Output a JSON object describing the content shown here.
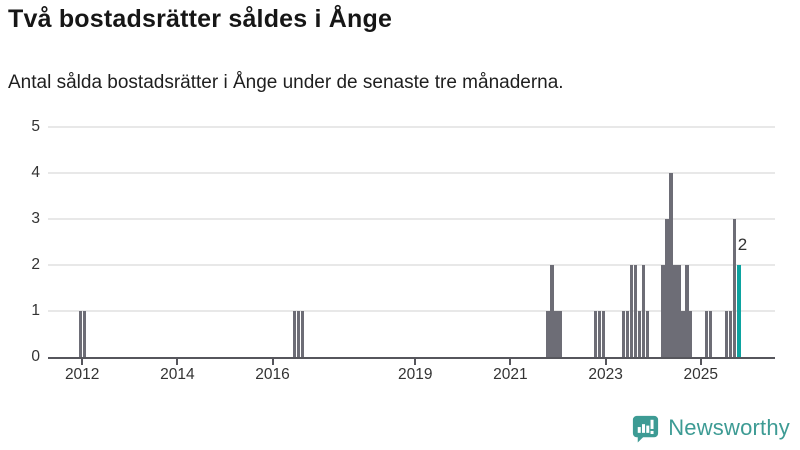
{
  "title": "Två bostadsrätter såldes i Ånge",
  "subtitle": "Antal sålda bostadsrätter i Ånge under de senaste tre månaderna.",
  "branding": {
    "logo_text": "Newsworthy",
    "logo_color": "#3d9b94"
  },
  "colors": {
    "bar": "#6d6d76",
    "highlight": "#0ca3a0",
    "gridline": "#e8e8e8",
    "axis_line": "#56565c",
    "axis_text": "#333333"
  },
  "chart_data": {
    "type": "bar",
    "title": "Två bostadsrätter såldes i Ånge",
    "subtitle": "Antal sålda bostadsrätter i Ånge under de senaste tre månaderna.",
    "xlabel": "",
    "ylabel": "",
    "ylim": [
      0,
      5
    ],
    "grid": true,
    "y_ticks": [
      "0",
      "1",
      "2",
      "3",
      "4",
      "5"
    ],
    "x_ticks": [
      "2012",
      "2014",
      "2016",
      "2019",
      "2021",
      "2023",
      "2025"
    ],
    "unit": "antal sålda bostadsrätter per månad",
    "series": [
      {
        "name": "Antal sålda bostadsrätter",
        "points": [
          {
            "month": "2011-12",
            "value": 1
          },
          {
            "month": "2012-01",
            "value": 1
          },
          {
            "month": "2016-06",
            "value": 1
          },
          {
            "month": "2016-07",
            "value": 1
          },
          {
            "month": "2016-08",
            "value": 1
          },
          {
            "month": "2021-10",
            "value": 1
          },
          {
            "month": "2021-11",
            "value": 2
          },
          {
            "month": "2021-12",
            "value": 1
          },
          {
            "month": "2022-01",
            "value": 1
          },
          {
            "month": "2022-10",
            "value": 1
          },
          {
            "month": "2022-11",
            "value": 1
          },
          {
            "month": "2022-12",
            "value": 1
          },
          {
            "month": "2023-05",
            "value": 1
          },
          {
            "month": "2023-06",
            "value": 1
          },
          {
            "month": "2023-07",
            "value": 2
          },
          {
            "month": "2023-08",
            "value": 2
          },
          {
            "month": "2023-09",
            "value": 1
          },
          {
            "month": "2023-10",
            "value": 2
          },
          {
            "month": "2023-11",
            "value": 1
          },
          {
            "month": "2024-03",
            "value": 2
          },
          {
            "month": "2024-04",
            "value": 3
          },
          {
            "month": "2024-05",
            "value": 4
          },
          {
            "month": "2024-06",
            "value": 2
          },
          {
            "month": "2024-07",
            "value": 2
          },
          {
            "month": "2024-08",
            "value": 1
          },
          {
            "month": "2024-09",
            "value": 2
          },
          {
            "month": "2024-10",
            "value": 1
          },
          {
            "month": "2025-02",
            "value": 1
          },
          {
            "month": "2025-03",
            "value": 1
          },
          {
            "month": "2025-07",
            "value": 1
          },
          {
            "month": "2025-08",
            "value": 1
          },
          {
            "month": "2025-09",
            "value": 3
          },
          {
            "month": "2025-10",
            "value": 2,
            "highlight": true
          }
        ]
      }
    ],
    "annotation": {
      "text": "2",
      "month": "2025-10",
      "value": 2
    }
  }
}
